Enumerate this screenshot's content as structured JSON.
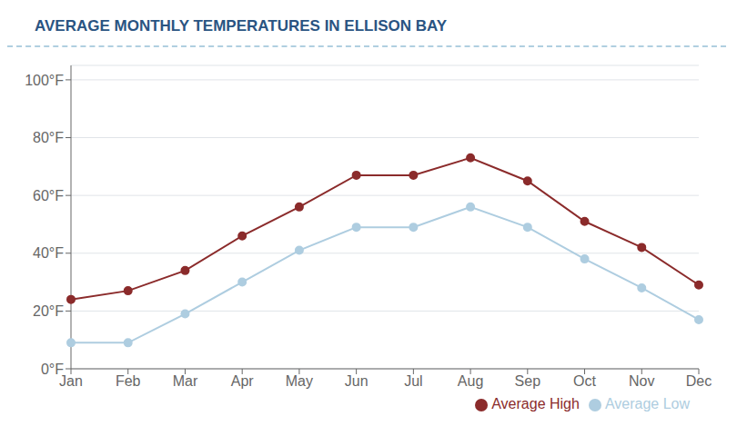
{
  "chart_data": {
    "type": "line",
    "title": "AVERAGE MONTHLY TEMPERATURES IN ELLISON BAY",
    "categories": [
      "Jan",
      "Feb",
      "Mar",
      "Apr",
      "May",
      "Jun",
      "Jul",
      "Aug",
      "Sep",
      "Oct",
      "Nov",
      "Dec"
    ],
    "series": [
      {
        "name": "Average Low",
        "color": "#aecde0",
        "marker": "circle",
        "values": [
          9,
          9,
          19,
          30,
          41,
          49,
          49,
          56,
          49,
          38,
          28,
          17
        ]
      },
      {
        "name": "Average High",
        "color": "#8b2b2b",
        "marker": "circle",
        "values": [
          24,
          27,
          34,
          46,
          56,
          67,
          67,
          73,
          65,
          51,
          42,
          29
        ]
      }
    ],
    "ylim": [
      0,
      105
    ],
    "yticks": [
      {
        "value": 0,
        "label": "0°F"
      },
      {
        "value": 20,
        "label": "20°F"
      },
      {
        "value": 40,
        "label": "40°F"
      },
      {
        "value": 60,
        "label": "60°F"
      },
      {
        "value": 80,
        "label": "80°F"
      },
      {
        "value": 100,
        "label": "100°F"
      }
    ],
    "grid": true,
    "legend": "lower right"
  }
}
